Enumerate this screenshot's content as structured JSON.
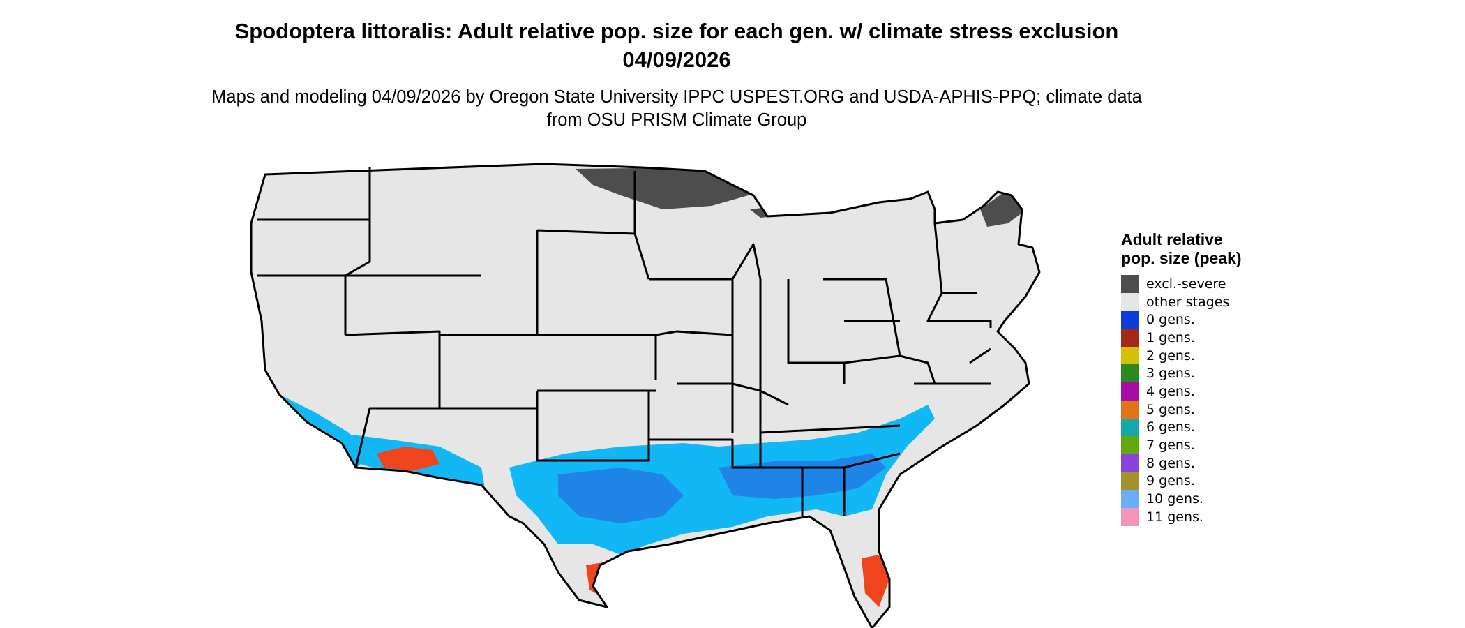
{
  "title": "Spodoptera littoralis: Adult relative pop. size for each gen. w/ climate stress exclusion 04/09/2026",
  "subtitle": "Maps and modeling 04/09/2026 by Oregon State University IPPC USPEST.ORG and USDA-APHIS-PPQ; climate data from OSU PRISM Climate Group",
  "legend": {
    "title": "Adult relative pop. size (peak)",
    "items": [
      {
        "label": "excl.-severe",
        "color": "#4d4d4d"
      },
      {
        "label": "other stages",
        "color": "#e6e6e6"
      },
      {
        "label": "0 gens.",
        "color": "#0a3ddb"
      },
      {
        "label": "1 gens.",
        "color": "#a62817"
      },
      {
        "label": "2 gens.",
        "color": "#d6c100"
      },
      {
        "label": "3 gens.",
        "color": "#2a8a1e"
      },
      {
        "label": "4 gens.",
        "color": "#a80ca8"
      },
      {
        "label": "5 gens.",
        "color": "#e07313"
      },
      {
        "label": "6 gens.",
        "color": "#14a8a8"
      },
      {
        "label": "7 gens.",
        "color": "#63a80f"
      },
      {
        "label": "8 gens.",
        "color": "#8a44db"
      },
      {
        "label": "9 gens.",
        "color": "#a6902a"
      },
      {
        "label": "10 gens.",
        "color": "#6aaff5"
      },
      {
        "label": "11 gens.",
        "color": "#f295b8"
      }
    ]
  },
  "map": {
    "colors": {
      "land": "#e6e6e6",
      "excluded": "#4d4d4d",
      "light_blue": "#12b8f5",
      "mid_blue": "#1e84e6",
      "orange_red": "#f0441c",
      "border": "#000000"
    }
  }
}
